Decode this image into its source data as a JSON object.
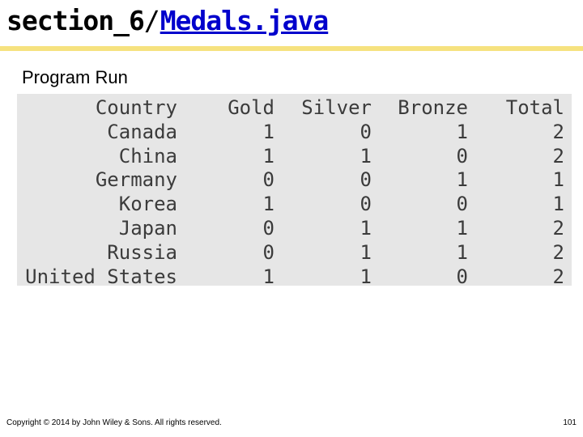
{
  "header": {
    "path_prefix": "section_6",
    "separator": "/",
    "file_link": "Medals.java"
  },
  "subtitle": "Program Run",
  "output": {
    "headers": {
      "country": "Country",
      "gold": "Gold",
      "silver": "Silver",
      "bronze": "Bronze",
      "total": "Total"
    },
    "rows": [
      {
        "country": "Canada",
        "gold": "1",
        "silver": "0",
        "bronze": "1",
        "total": "2"
      },
      {
        "country": "China",
        "gold": "1",
        "silver": "1",
        "bronze": "0",
        "total": "2"
      },
      {
        "country": "Germany",
        "gold": "0",
        "silver": "0",
        "bronze": "1",
        "total": "1"
      },
      {
        "country": "Korea",
        "gold": "1",
        "silver": "0",
        "bronze": "0",
        "total": "1"
      },
      {
        "country": "Japan",
        "gold": "0",
        "silver": "1",
        "bronze": "1",
        "total": "2"
      },
      {
        "country": "Russia",
        "gold": "0",
        "silver": "1",
        "bronze": "1",
        "total": "2"
      },
      {
        "country": "United States",
        "gold": "1",
        "silver": "1",
        "bronze": "0",
        "total": "2"
      }
    ]
  },
  "footer": {
    "copyright": "Copyright © 2014 by John Wiley & Sons.  All rights reserved.",
    "page_number": "101"
  },
  "colors": {
    "accent_rule": "#f6e27f",
    "link": "#0000cc",
    "terminal_background": "#e6e6e6",
    "terminal_text": "#3b3b3b"
  }
}
